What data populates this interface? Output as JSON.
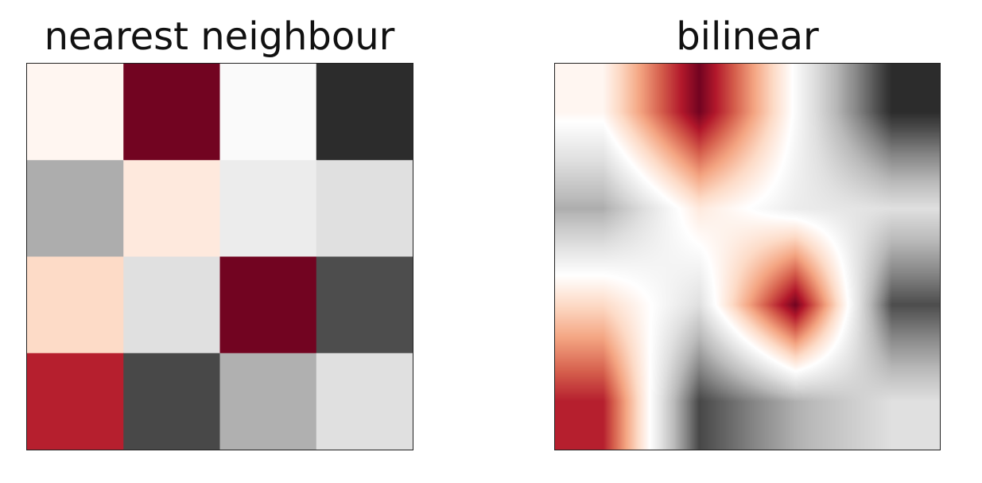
{
  "chart_data": [
    {
      "type": "heatmap",
      "title": "nearest neighbour",
      "interpolation": "nearest",
      "rows": 4,
      "cols": 4,
      "cmap": "RdGy",
      "axes_visible": false,
      "values": [
        [
          0.05,
          0.97,
          -0.03,
          -0.93
        ],
        [
          -0.45,
          0.12,
          -0.12,
          -0.2
        ],
        [
          0.2,
          -0.2,
          0.97,
          -0.8
        ],
        [
          0.78,
          -0.82,
          -0.44,
          -0.2
        ]
      ]
    },
    {
      "type": "heatmap",
      "title": "bilinear",
      "interpolation": "bilinear",
      "rows": 4,
      "cols": 4,
      "cmap": "RdGy",
      "axes_visible": false,
      "values": [
        [
          0.05,
          0.97,
          -0.03,
          -0.93
        ],
        [
          -0.45,
          0.12,
          -0.12,
          -0.2
        ],
        [
          0.2,
          -0.2,
          0.97,
          -0.8
        ],
        [
          0.78,
          -0.82,
          -0.44,
          -0.2
        ]
      ]
    }
  ],
  "colormap": {
    "name": "RdGy",
    "stops": [
      "#1a1a1a",
      "#4d4d4d",
      "#878787",
      "#bababa",
      "#e0e0e0",
      "#ffffff",
      "#fddbc7",
      "#f4a582",
      "#d6604d",
      "#b2182b",
      "#67001f"
    ],
    "vmin": -1,
    "vmax": 1
  }
}
